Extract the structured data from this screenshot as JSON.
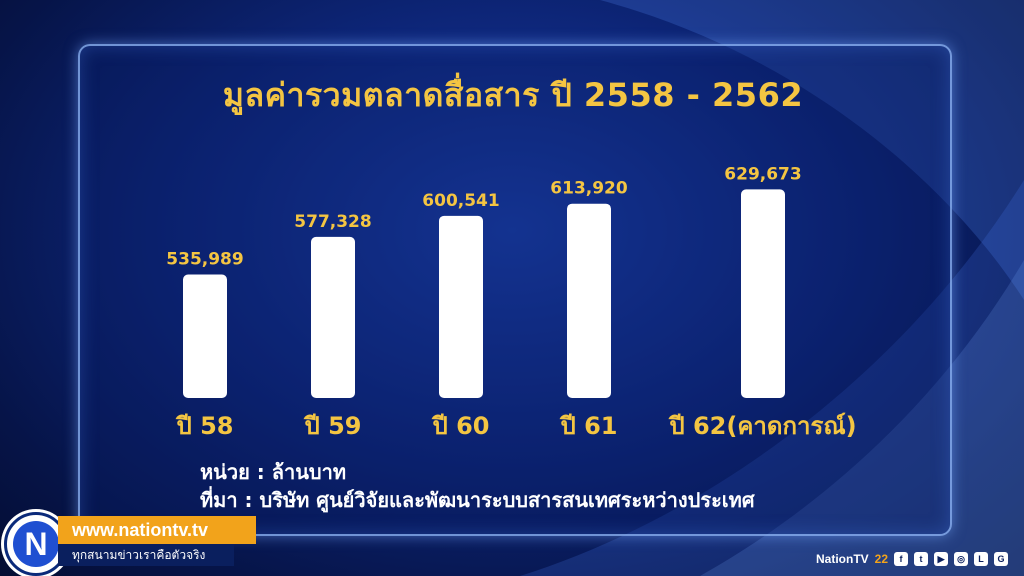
{
  "chart_data": {
    "type": "bar",
    "title": "มูลค่ารวมตลาดสื่อสาร ปี 2558 - 2562",
    "categories": [
      "ปี 58",
      "ปี 59",
      "ปี 60",
      "ปี 61",
      "ปี 62(คาดการณ์)"
    ],
    "values": [
      535989,
      577328,
      600541,
      613920,
      629673
    ],
    "value_labels": [
      "535,989",
      "577,328",
      "600,541",
      "613,920",
      "629,673"
    ],
    "ylim": [
      400000,
      640000
    ],
    "grid": false,
    "legend": "none",
    "colors": {
      "bar": "#ffffff",
      "value_label": "#f4c542",
      "category_label": "#f4c542",
      "title": "#f4c542"
    }
  },
  "notes": {
    "unit": "หน่วย : ล้านบาท",
    "source": "ที่มา : บริษัท ศูนย์วิจัยและพัฒนาระบบสารสนเทศระหว่างประเทศ"
  },
  "branding": {
    "logo_letter": "N",
    "url": "www.nationtv.tv",
    "slogan": "ทุกสนามข่าวเราคือตัวจริง",
    "channel_name": "NationTV",
    "channel_number": "22",
    "social_icons": [
      "facebook-icon",
      "twitter-icon",
      "youtube-icon",
      "instagram-icon",
      "line-icon",
      "googleplus-icon"
    ]
  }
}
